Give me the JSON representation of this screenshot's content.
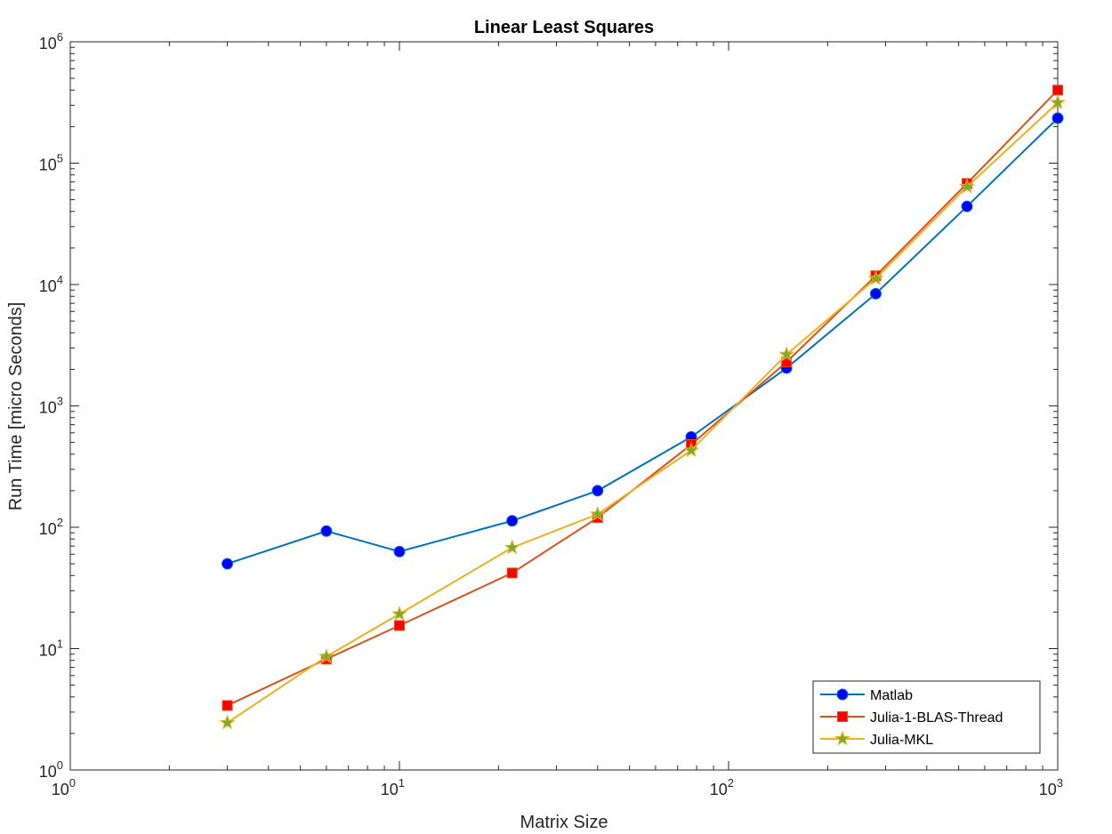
{
  "chart_data": {
    "type": "line",
    "title": "Linear Least Squares",
    "xlabel": "Matrix Size",
    "ylabel": "Run Time  [micro Seconds]",
    "xscale": "log",
    "yscale": "log",
    "xlim": [
      1,
      1000
    ],
    "ylim": [
      1,
      1000000
    ],
    "xticks": [
      {
        "base": "10",
        "exp": "0",
        "value": 1
      },
      {
        "base": "10",
        "exp": "1",
        "value": 10
      },
      {
        "base": "10",
        "exp": "2",
        "value": 100
      },
      {
        "base": "10",
        "exp": "3",
        "value": 1000
      }
    ],
    "yticks": [
      {
        "base": "10",
        "exp": "0",
        "value": 1
      },
      {
        "base": "10",
        "exp": "1",
        "value": 10
      },
      {
        "base": "10",
        "exp": "2",
        "value": 100
      },
      {
        "base": "10",
        "exp": "3",
        "value": 1000
      },
      {
        "base": "10",
        "exp": "4",
        "value": 10000
      },
      {
        "base": "10",
        "exp": "5",
        "value": 100000
      },
      {
        "base": "10",
        "exp": "6",
        "value": 1000000
      }
    ],
    "grid": false,
    "legend_position": "bottom-right",
    "x": [
      3,
      6,
      10,
      22,
      40,
      77,
      150,
      280,
      530,
      1000
    ],
    "series": [
      {
        "name": "Matlab",
        "color": "#0072BD",
        "marker": "circle",
        "marker_color": "#0000ff",
        "values": [
          50,
          93,
          63,
          113,
          200,
          555,
          2050,
          8400,
          44000,
          235000
        ]
      },
      {
        "name": "Julia-1-BLAS-Thread",
        "color": "#D95319",
        "marker": "square",
        "marker_color": "#ff0000",
        "values": [
          3.4,
          8.2,
          15.5,
          42,
          120,
          480,
          2300,
          11800,
          68000,
          400000
        ]
      },
      {
        "name": "Julia-MKL",
        "color": "#EDB120",
        "marker": "star",
        "marker_color": "#77AC30",
        "values": [
          2.45,
          8.6,
          19.3,
          68,
          128,
          430,
          2650,
          11200,
          64000,
          315000
        ]
      }
    ]
  }
}
